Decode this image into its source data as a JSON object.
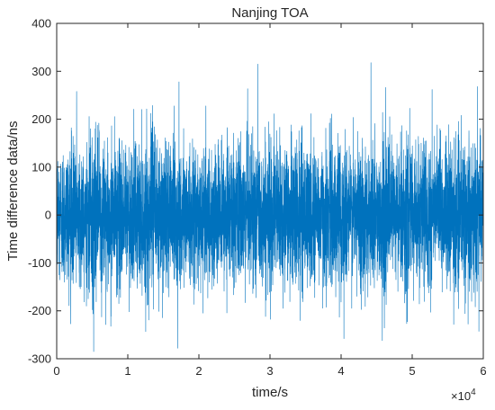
{
  "chart_data": {
    "type": "line",
    "title": "Nanjing TOA",
    "xlabel": "time/s",
    "ylabel": "Time difference data/ns",
    "x_exponent_label": "×10",
    "x_exponent_power": "4",
    "xlim": [
      0,
      60000
    ],
    "ylim": [
      -300,
      400
    ],
    "x_ticks": [
      0,
      10000,
      20000,
      30000,
      40000,
      50000,
      60000
    ],
    "x_tick_labels": [
      "0",
      "1",
      "2",
      "3",
      "4",
      "5",
      "6"
    ],
    "y_ticks": [
      -300,
      -200,
      -100,
      0,
      100,
      200,
      300,
      400
    ],
    "y_tick_labels": [
      "-300",
      "-200",
      "-100",
      "0",
      "100",
      "200",
      "300",
      "400"
    ],
    "grid": false,
    "legend": "none",
    "series": [
      {
        "color": "#0072BD",
        "sample_count": 60000,
        "x_start": 0,
        "x_end": 60000,
        "approx_mean": 0,
        "approx_std": 70,
        "approx_min": -285,
        "approx_max": 318,
        "notable_peaks": [
          {
            "x": 28300,
            "y": 315
          },
          {
            "x": 44200,
            "y": 318
          },
          {
            "x": 17200,
            "y": 278
          },
          {
            "x": 59200,
            "y": 268
          },
          {
            "x": 52800,
            "y": 262
          },
          {
            "x": 2800,
            "y": 258
          },
          {
            "x": 5200,
            "y": -285
          },
          {
            "x": 17000,
            "y": -278
          },
          {
            "x": 40400,
            "y": -258
          },
          {
            "x": 45800,
            "y": -262
          }
        ]
      }
    ]
  }
}
